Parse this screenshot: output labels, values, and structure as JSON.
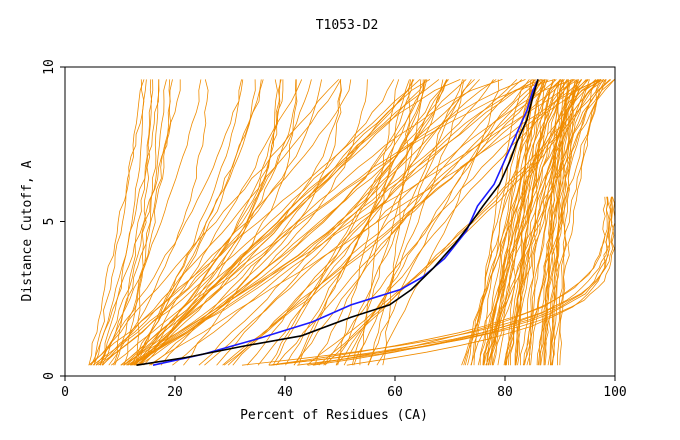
{
  "chart_data": {
    "type": "line",
    "title": "T1053-D2",
    "xlabel": "Percent of Residues (CA)",
    "ylabel": "Distance Cutoff, A",
    "xlim": [
      0,
      100
    ],
    "ylim": [
      0,
      10
    ],
    "x_ticks": [
      {
        "value": 0,
        "label": "0"
      },
      {
        "value": 20,
        "label": "20"
      },
      {
        "value": 40,
        "label": "40"
      },
      {
        "value": 60,
        "label": "60"
      },
      {
        "value": 80,
        "label": "80"
      },
      {
        "value": 100,
        "label": "100"
      }
    ],
    "y_ticks": [
      {
        "value": 0,
        "label": "0"
      },
      {
        "value": 5,
        "label": "5"
      },
      {
        "value": 10,
        "label": "10"
      }
    ],
    "grid": false,
    "colors": {
      "bundle": "#f08c00",
      "highlight_blue": "#1a1aff",
      "highlight_black": "#000000"
    },
    "highlight_series": [
      {
        "color": "#1a1aff",
        "points": [
          [
            16,
            0.35
          ],
          [
            25,
            0.7
          ],
          [
            35,
            1.2
          ],
          [
            45,
            1.75
          ],
          [
            52,
            2.3
          ],
          [
            61,
            2.8
          ],
          [
            65,
            3.2
          ],
          [
            69,
            3.8
          ],
          [
            73,
            4.7
          ],
          [
            75,
            5.5
          ],
          [
            78,
            6.2
          ],
          [
            80,
            7.0
          ],
          [
            82,
            7.8
          ],
          [
            84,
            8.6
          ],
          [
            85,
            9.2
          ],
          [
            86,
            9.6
          ]
        ]
      },
      {
        "color": "#000000",
        "points": [
          [
            13,
            0.35
          ],
          [
            22,
            0.6
          ],
          [
            32,
            0.95
          ],
          [
            43,
            1.3
          ],
          [
            52,
            1.9
          ],
          [
            59,
            2.3
          ],
          [
            63,
            2.8
          ],
          [
            67,
            3.5
          ],
          [
            71,
            4.3
          ],
          [
            74,
            5.0
          ],
          [
            76,
            5.5
          ],
          [
            79,
            6.2
          ],
          [
            81,
            7.0
          ],
          [
            82,
            7.5
          ],
          [
            84,
            8.3
          ],
          [
            85,
            9.0
          ],
          [
            86,
            9.6
          ]
        ]
      }
    ],
    "bundle_groups": [
      {
        "name": "top",
        "count": 60,
        "x0": [
          72,
          90
        ],
        "xmax": [
          84,
          100
        ],
        "p": [
          0.55,
          0.85
        ],
        "y_end": 9.6
      },
      {
        "name": "mid",
        "count": 45,
        "x0": [
          10,
          60
        ],
        "xmax": [
          60,
          98
        ],
        "p": [
          0.7,
          1.3
        ],
        "y_end": 9.6
      },
      {
        "name": "fast",
        "count": 40,
        "x0": [
          4,
          14
        ],
        "xmax": [
          14,
          70
        ],
        "p": [
          1.0,
          2.3
        ],
        "y_end": 9.6
      },
      {
        "name": "flat",
        "count": 8,
        "x0": [
          28,
          55
        ],
        "xmax": [
          98,
          100
        ],
        "p": [
          3.5,
          5.0
        ],
        "y_end": 5.8
      }
    ]
  }
}
